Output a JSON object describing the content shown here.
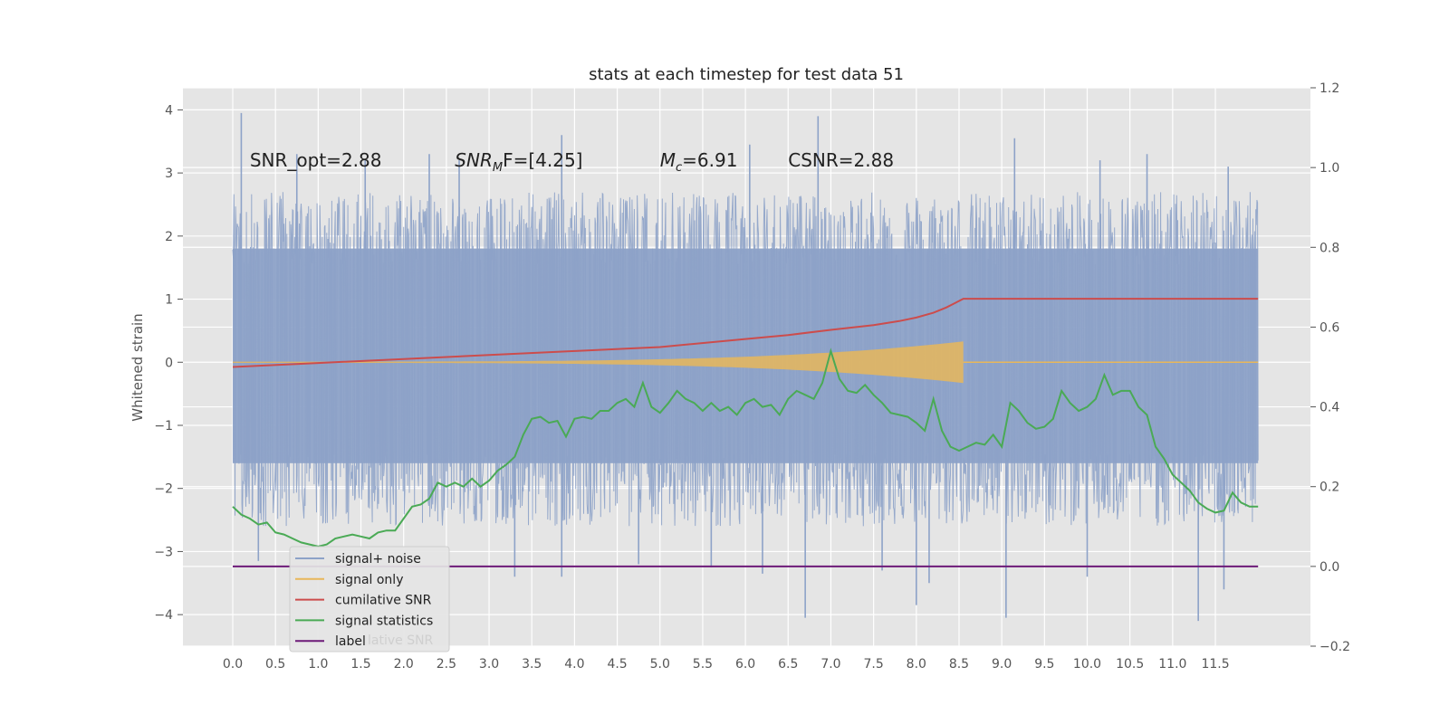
{
  "chart_data": {
    "type": "line",
    "title": "stats at each timestep for test data 51",
    "ylabel": "Whitened strain",
    "xlabel": "",
    "xlim": [
      -0.58,
      12.56
    ],
    "ylim": [
      -4.5,
      4.35
    ],
    "y2lim": [
      -0.2,
      1.2
    ],
    "grid": true,
    "legend_position": "lower-left",
    "x_ticks": [
      "0.0",
      "0.5",
      "1.0",
      "1.5",
      "2.0",
      "2.5",
      "3.0",
      "3.5",
      "4.0",
      "4.5",
      "5.0",
      "5.5",
      "6.0",
      "6.5",
      "7.0",
      "7.5",
      "8.0",
      "8.5",
      "9.0",
      "9.5",
      "10.0",
      "10.5",
      "11.0",
      "11.5"
    ],
    "y_ticks": [
      "4",
      "3",
      "2",
      "1",
      "0",
      "−1",
      "−2",
      "−3",
      "−4"
    ],
    "y2_ticks": [
      "1.2",
      "1.0",
      "0.8",
      "0.6",
      "0.4",
      "0.2",
      "0.0",
      "−0.2"
    ],
    "annotations": [
      {
        "text": "SNR_opt=2.88",
        "x": 0.2,
        "y": 3.2
      },
      {
        "text": "SNR",
        "sub": "M",
        "rest": "F=[4.25]",
        "x": 2.6,
        "y": 3.2
      },
      {
        "text": "M",
        "sub": "c",
        "rest": "=6.91",
        "x": 5.0,
        "y": 3.2
      },
      {
        "text": "CSNR=2.88",
        "x": 6.5,
        "y": 3.2
      }
    ],
    "series": [
      {
        "name": "signal+ noise",
        "color": "#8da2c8",
        "axis": "left",
        "kind": "noise",
        "x_range": [
          0,
          12.0
        ],
        "envelope": [
          -2.6,
          2.7
        ],
        "outliers": [
          [
            0.1,
            3.95
          ],
          [
            0.75,
            3.3
          ],
          [
            1.55,
            3.2
          ],
          [
            2.3,
            3.3
          ],
          [
            2.65,
            3.2
          ],
          [
            3.85,
            3.6
          ],
          [
            6.05,
            3.45
          ],
          [
            6.85,
            3.9
          ],
          [
            9.15,
            3.55
          ],
          [
            10.15,
            3.2
          ],
          [
            10.7,
            3.3
          ],
          [
            11.65,
            3.1
          ],
          [
            0.3,
            -3.15
          ],
          [
            3.3,
            -3.4
          ],
          [
            3.85,
            -3.4
          ],
          [
            4.75,
            -3.2
          ],
          [
            5.6,
            -3.25
          ],
          [
            6.2,
            -3.35
          ],
          [
            6.7,
            -4.05
          ],
          [
            7.6,
            -3.3
          ],
          [
            8.0,
            -3.85
          ],
          [
            8.15,
            -3.5
          ],
          [
            9.05,
            -4.05
          ],
          [
            10.0,
            -3.4
          ],
          [
            11.3,
            -4.1
          ],
          [
            11.6,
            -3.6
          ]
        ]
      },
      {
        "name": "signal only",
        "color": "#e8b75a",
        "axis": "left",
        "kind": "chirp",
        "x_range": [
          0,
          8.55
        ],
        "peak_amplitude": 0.32
      },
      {
        "name": "cumilative SNR",
        "color": "#cc4c4c",
        "axis": "right",
        "x": [
          0.0,
          1.0,
          2.0,
          3.0,
          4.0,
          5.0,
          6.0,
          6.5,
          7.0,
          7.5,
          7.8,
          8.0,
          8.2,
          8.35,
          8.45,
          8.55,
          12.0
        ],
        "values": [
          0.5,
          0.51,
          0.52,
          0.53,
          0.54,
          0.55,
          0.57,
          0.58,
          0.593,
          0.605,
          0.615,
          0.624,
          0.636,
          0.649,
          0.66,
          0.671,
          0.671
        ]
      },
      {
        "name": "signal statistics",
        "color": "#4aaa55",
        "axis": "right",
        "x": [
          0.0,
          0.1,
          0.2,
          0.3,
          0.4,
          0.5,
          0.6,
          0.7,
          0.8,
          0.9,
          1.0,
          1.1,
          1.2,
          1.3,
          1.4,
          1.5,
          1.6,
          1.7,
          1.8,
          1.9,
          2.0,
          2.1,
          2.2,
          2.3,
          2.4,
          2.5,
          2.6,
          2.7,
          2.8,
          2.9,
          3.0,
          3.1,
          3.2,
          3.3,
          3.4,
          3.5,
          3.6,
          3.7,
          3.8,
          3.9,
          4.0,
          4.1,
          4.2,
          4.3,
          4.4,
          4.5,
          4.6,
          4.7,
          4.8,
          4.9,
          5.0,
          5.1,
          5.2,
          5.3,
          5.4,
          5.5,
          5.6,
          5.7,
          5.8,
          5.9,
          6.0,
          6.1,
          6.2,
          6.3,
          6.4,
          6.5,
          6.6,
          6.7,
          6.8,
          6.9,
          7.0,
          7.1,
          7.2,
          7.3,
          7.4,
          7.5,
          7.6,
          7.7,
          7.8,
          7.9,
          8.0,
          8.1,
          8.2,
          8.3,
          8.4,
          8.5,
          8.6,
          8.7,
          8.8,
          8.9,
          9.0,
          9.1,
          9.2,
          9.3,
          9.4,
          9.5,
          9.6,
          9.7,
          9.8,
          9.9,
          10.0,
          10.1,
          10.2,
          10.3,
          10.4,
          10.5,
          10.6,
          10.7,
          10.8,
          10.9,
          11.0,
          11.1,
          11.2,
          11.3,
          11.4,
          11.5,
          11.6,
          11.7,
          11.8,
          11.9,
          12.0
        ],
        "values": [
          0.15,
          0.13,
          0.12,
          0.105,
          0.11,
          0.085,
          0.08,
          0.07,
          0.06,
          0.055,
          0.05,
          0.055,
          0.07,
          0.075,
          0.08,
          0.075,
          0.07,
          0.085,
          0.09,
          0.09,
          0.12,
          0.15,
          0.155,
          0.17,
          0.21,
          0.2,
          0.21,
          0.2,
          0.22,
          0.2,
          0.215,
          0.24,
          0.255,
          0.275,
          0.33,
          0.37,
          0.375,
          0.36,
          0.365,
          0.325,
          0.37,
          0.375,
          0.37,
          0.39,
          0.39,
          0.41,
          0.42,
          0.4,
          0.46,
          0.4,
          0.385,
          0.41,
          0.44,
          0.42,
          0.41,
          0.39,
          0.41,
          0.39,
          0.4,
          0.38,
          0.41,
          0.42,
          0.4,
          0.405,
          0.38,
          0.42,
          0.44,
          0.43,
          0.42,
          0.46,
          0.54,
          0.47,
          0.44,
          0.435,
          0.455,
          0.43,
          0.41,
          0.385,
          0.38,
          0.375,
          0.36,
          0.34,
          0.42,
          0.34,
          0.3,
          0.29,
          0.3,
          0.31,
          0.305,
          0.33,
          0.3,
          0.41,
          0.39,
          0.36,
          0.345,
          0.35,
          0.37,
          0.44,
          0.41,
          0.39,
          0.4,
          0.42,
          0.48,
          0.43,
          0.44,
          0.44,
          0.4,
          0.38,
          0.3,
          0.27,
          0.23,
          0.21,
          0.19,
          0.16,
          0.145,
          0.135,
          0.14,
          0.185,
          0.16,
          0.15,
          0.15
        ]
      },
      {
        "name": "label",
        "color": "#6d1a78",
        "axis": "right",
        "x": [
          0.0,
          12.0
        ],
        "values": [
          0.0,
          0.0
        ]
      }
    ],
    "legend_entries": [
      "signal+ noise",
      "signal only",
      "cumilative SNR",
      "signal statistics",
      "label"
    ],
    "legend_ghost_text": "lative SNR"
  }
}
